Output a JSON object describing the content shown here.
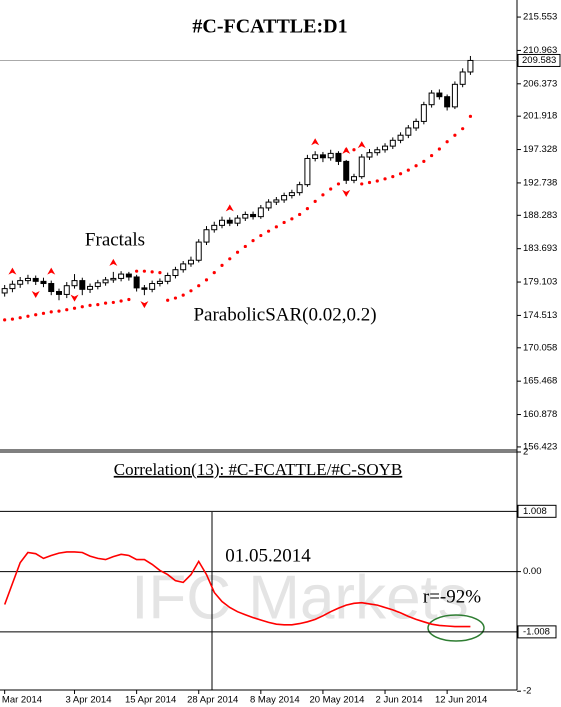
{
  "chart_data": [
    {
      "type": "candlestick",
      "title": "#C-FCATTLE:D1",
      "xlim": [
        -0.6,
        66
      ],
      "ylim": [
        156.0,
        217.9
      ],
      "yticks": [
        215.553,
        210.963,
        206.373,
        201.918,
        197.328,
        192.738,
        188.283,
        183.693,
        179.103,
        174.513,
        170.058,
        165.468,
        160.878,
        156.423
      ],
      "last_price": 209.583,
      "colors": {
        "up": "#ffffff",
        "down": "#000000",
        "outline": "#000000"
      },
      "ohlc": {
        "open": [
          177.6,
          178.2,
          178.8,
          179.3,
          179.6,
          179.2,
          178.9,
          177.8,
          177.4,
          178.6,
          179.3,
          178.1,
          178.5,
          179.0,
          179.4,
          179.6,
          180.2,
          179.8,
          178.3,
          178.1,
          178.9,
          179.2,
          180.0,
          180.8,
          181.6,
          182.1,
          184.6,
          186.3,
          186.9,
          187.6,
          187.2,
          187.9,
          188.4,
          188.1,
          189.3,
          190.1,
          190.4,
          191.0,
          191.4,
          192.5,
          196.1,
          196.6,
          196.2,
          196.8,
          195.7,
          193.1,
          193.6,
          196.3,
          196.9,
          197.3,
          197.8,
          198.6,
          199.3,
          200.3,
          201.2,
          203.5,
          205.1,
          204.6,
          203.2,
          206.3,
          208.0
        ],
        "high": [
          178.7,
          179.3,
          179.8,
          180.1,
          180.0,
          179.7,
          179.3,
          178.2,
          179.1,
          180.2,
          179.7,
          178.9,
          179.4,
          179.8,
          180.5,
          180.6,
          180.5,
          180.1,
          178.7,
          179.3,
          179.6,
          180.4,
          181.2,
          182.0,
          182.6,
          185.0,
          186.8,
          187.4,
          188.1,
          188.0,
          188.3,
          188.8,
          188.8,
          189.7,
          190.5,
          190.8,
          191.4,
          191.8,
          192.9,
          196.6,
          197.1,
          197.0,
          197.3,
          197.1,
          195.9,
          194.0,
          196.7,
          197.4,
          197.7,
          198.2,
          199.0,
          199.7,
          200.7,
          201.6,
          203.9,
          205.5,
          205.6,
          204.9,
          206.7,
          208.5,
          210.2
        ],
        "low": [
          177.1,
          177.7,
          178.3,
          178.8,
          178.7,
          178.4,
          177.3,
          176.6,
          176.9,
          178.2,
          177.3,
          177.6,
          178.1,
          178.6,
          179.0,
          179.2,
          179.3,
          177.8,
          177.3,
          177.7,
          178.5,
          178.8,
          179.6,
          180.4,
          181.2,
          181.8,
          184.2,
          185.9,
          186.5,
          186.8,
          186.8,
          187.5,
          187.7,
          187.8,
          188.9,
          189.7,
          190.0,
          190.6,
          191.0,
          192.2,
          195.7,
          195.6,
          195.8,
          195.2,
          192.6,
          192.7,
          193.3,
          195.9,
          196.5,
          196.9,
          197.4,
          198.2,
          198.9,
          199.9,
          200.8,
          203.1,
          204.2,
          202.7,
          202.9,
          205.9,
          207.6
        ],
        "close": [
          178.2,
          178.8,
          179.3,
          179.6,
          179.2,
          178.9,
          177.8,
          177.4,
          178.6,
          179.3,
          178.1,
          178.5,
          179.0,
          179.4,
          179.6,
          180.2,
          179.8,
          178.3,
          178.1,
          178.9,
          179.2,
          180.0,
          180.8,
          181.6,
          182.1,
          184.6,
          186.3,
          186.9,
          187.6,
          187.2,
          187.9,
          188.4,
          188.1,
          189.3,
          190.1,
          190.4,
          191.0,
          191.4,
          192.5,
          196.1,
          196.6,
          196.2,
          196.8,
          195.7,
          193.1,
          193.6,
          196.3,
          196.9,
          197.3,
          197.8,
          198.6,
          199.3,
          200.3,
          201.2,
          203.5,
          205.1,
          204.6,
          203.2,
          206.3,
          208.0,
          209.583
        ]
      },
      "sar": {
        "name": "ParabolicSAR(0.02,0.2)",
        "color": "#ff0000",
        "values": [
          173.9,
          174.0,
          174.2,
          174.4,
          174.6,
          174.8,
          175.0,
          175.1,
          175.3,
          175.5,
          175.7,
          175.9,
          176.0,
          176.2,
          176.3,
          176.5,
          176.7,
          180.6,
          180.6,
          180.5,
          180.4,
          176.6,
          176.9,
          177.3,
          177.9,
          178.6,
          179.4,
          180.4,
          181.4,
          182.3,
          183.2,
          184.0,
          184.8,
          185.5,
          186.1,
          186.7,
          187.3,
          187.8,
          188.4,
          189.2,
          190.2,
          191.1,
          191.9,
          192.6,
          197.3,
          197.3,
          192.6,
          192.8,
          193.0,
          193.3,
          193.6,
          194.0,
          194.5,
          195.1,
          195.7,
          196.5,
          197.4,
          198.4,
          199.3,
          200.2,
          201.9
        ]
      },
      "fractals": {
        "name": "Fractals",
        "color": "#ff0000",
        "up": [
          1,
          6,
          14,
          29,
          40,
          44,
          46
        ],
        "down": [
          4,
          9,
          18,
          44
        ]
      }
    },
    {
      "type": "line",
      "title": "Correlation(13): #C-FCATTLE/#C-SOYB",
      "xlim": [
        -0.6,
        66
      ],
      "xticks": [
        {
          "value": 0,
          "label": "Mar 2014"
        },
        {
          "value": 9,
          "label": "3 Apr 2014"
        },
        {
          "value": 17,
          "label": "15 Apr 2014"
        },
        {
          "value": 25,
          "label": "28 Apr 2014"
        },
        {
          "value": 33,
          "label": "8 May 2014"
        },
        {
          "value": 41,
          "label": "20 May 2014"
        },
        {
          "value": 49,
          "label": "2 Jun 2014"
        },
        {
          "value": 57,
          "label": "12 Jun 2014"
        }
      ],
      "ylim": [
        -1.98,
        2.0
      ],
      "yticks": [
        2,
        1.008,
        {
          "value": 0,
          "label": "0.00"
        },
        -1.008,
        -2
      ],
      "boxed": [
        1,
        3
      ],
      "levels": [
        1.008,
        0,
        -1.008
      ],
      "color": "#ff0000",
      "values": [
        -0.55,
        -0.2,
        0.15,
        0.32,
        0.3,
        0.22,
        0.27,
        0.31,
        0.33,
        0.33,
        0.32,
        0.26,
        0.22,
        0.2,
        0.25,
        0.29,
        0.27,
        0.2,
        0.2,
        0.12,
        0.02,
        -0.05,
        -0.15,
        -0.18,
        -0.05,
        0.17,
        -0.05,
        -0.35,
        -0.5,
        -0.6,
        -0.67,
        -0.72,
        -0.77,
        -0.81,
        -0.85,
        -0.88,
        -0.89,
        -0.89,
        -0.87,
        -0.84,
        -0.8,
        -0.74,
        -0.67,
        -0.61,
        -0.56,
        -0.53,
        -0.52,
        -0.54,
        -0.56,
        -0.6,
        -0.64,
        -0.69,
        -0.75,
        -0.8,
        -0.84,
        -0.88,
        -0.9,
        -0.91,
        -0.92,
        -0.92,
        -0.92
      ],
      "annotations": [
        "01.05.2014",
        "r=-92%"
      ],
      "watermark": "IFC Markets"
    }
  ]
}
